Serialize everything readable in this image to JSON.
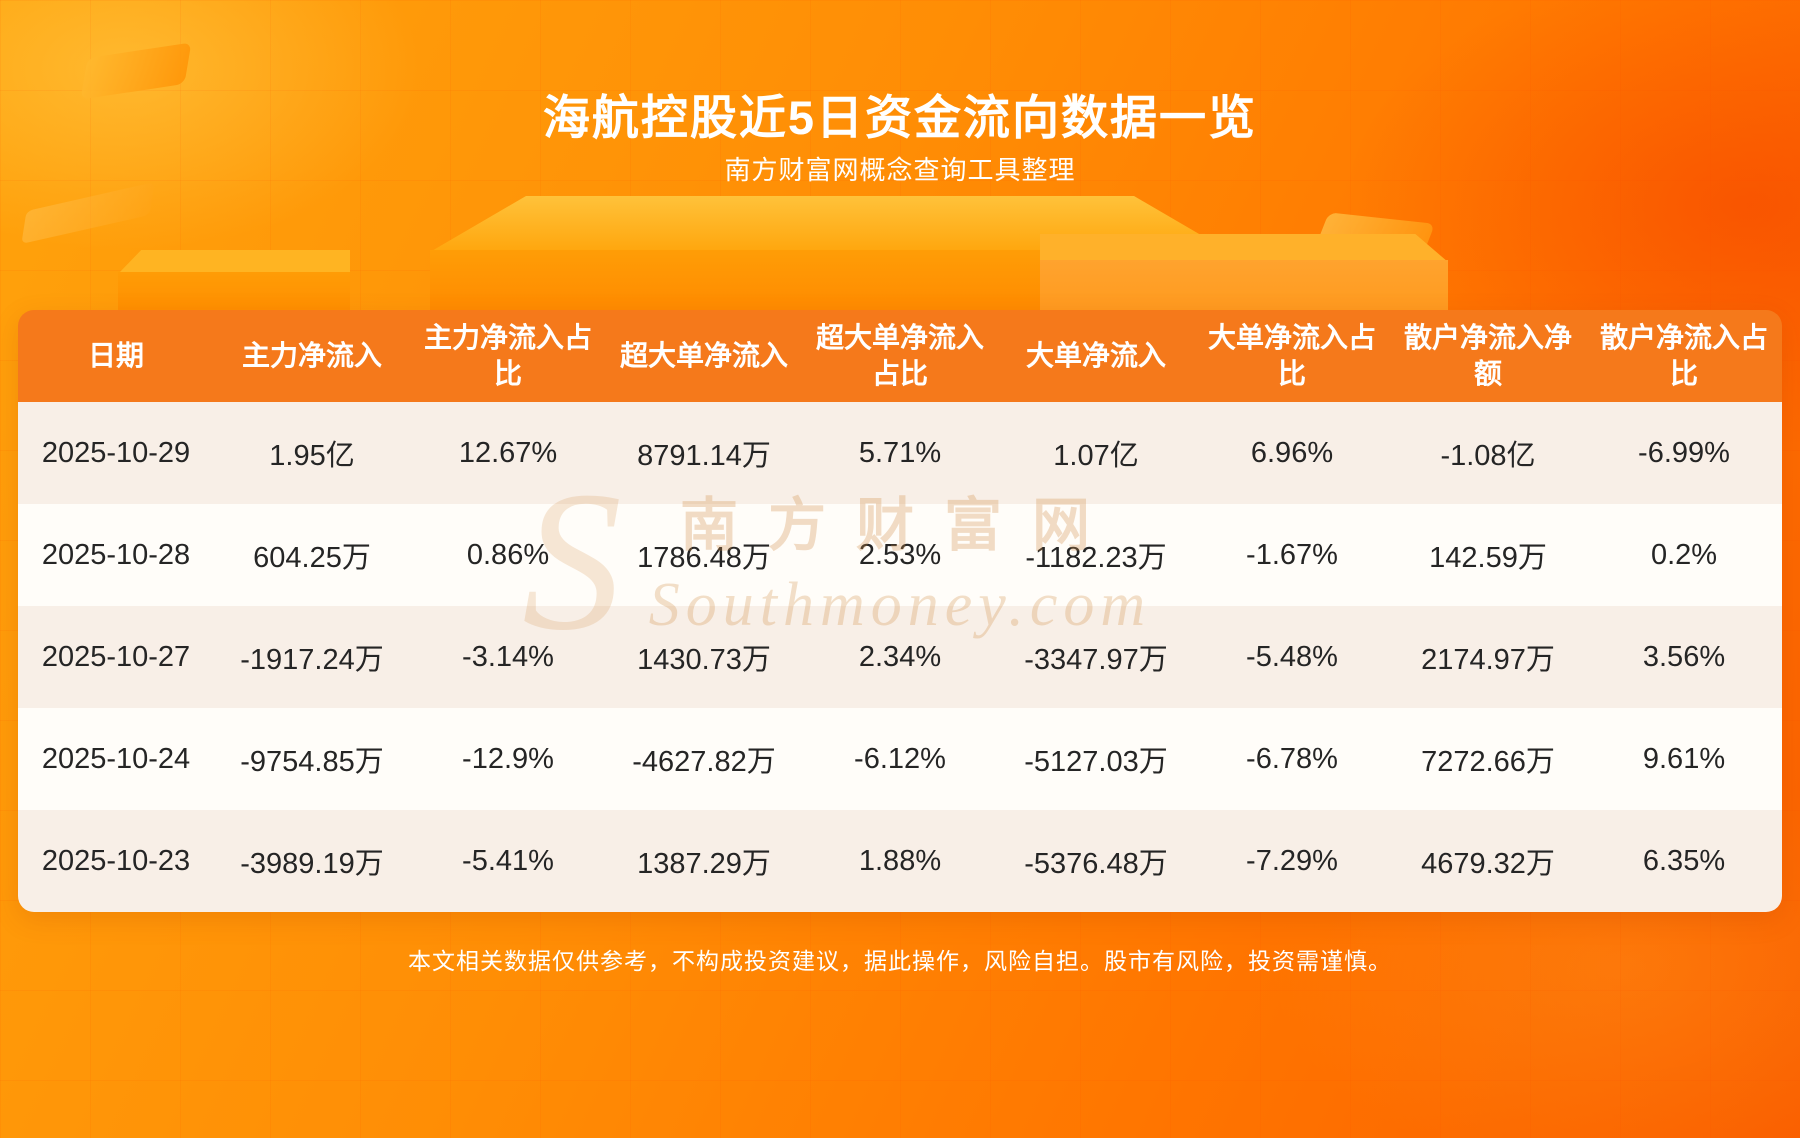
{
  "page": {
    "title": "海航控股近5日资金流向数据一览",
    "subtitle": "南方财富网概念查询工具整理",
    "footer": "本文相关数据仅供参考，不构成投资建议，据此操作，风险自担。股市有风险，投资需谨慎。",
    "watermark": {
      "initial": "S",
      "cn": "南方财富网",
      "en": "Southmoney.com"
    }
  },
  "chart_data": {
    "type": "table",
    "title": "海航控股近5日资金流向数据一览",
    "columns": [
      "日期",
      "主力净流入",
      "主力净流入占比",
      "超大单净流入",
      "超大单净流入占比",
      "大单净流入",
      "大单净流入占比",
      "散户净流入净额",
      "散户净流入占比"
    ],
    "rows": [
      [
        "2025-10-29",
        "1.95亿",
        "12.67%",
        "8791.14万",
        "5.71%",
        "1.07亿",
        "6.96%",
        "-1.08亿",
        "-6.99%"
      ],
      [
        "2025-10-28",
        "604.25万",
        "0.86%",
        "1786.48万",
        "2.53%",
        "-1182.23万",
        "-1.67%",
        "142.59万",
        "0.2%"
      ],
      [
        "2025-10-27",
        "-1917.24万",
        "-3.14%",
        "1430.73万",
        "2.34%",
        "-3347.97万",
        "-5.48%",
        "2174.97万",
        "3.56%"
      ],
      [
        "2025-10-24",
        "-9754.85万",
        "-12.9%",
        "-4627.82万",
        "-6.12%",
        "-5127.03万",
        "-6.78%",
        "7272.66万",
        "9.61%"
      ],
      [
        "2025-10-23",
        "-3989.19万",
        "-5.41%",
        "1387.29万",
        "1.88%",
        "-5376.48万",
        "-7.29%",
        "4679.32万",
        "6.35%"
      ]
    ],
    "colors": {
      "header_bg": "#f5791b",
      "row_alt_bg": "#f8efe7",
      "row_bg": "#fffdf9",
      "background_accent": "#ff8a05",
      "text": "#252525"
    }
  }
}
